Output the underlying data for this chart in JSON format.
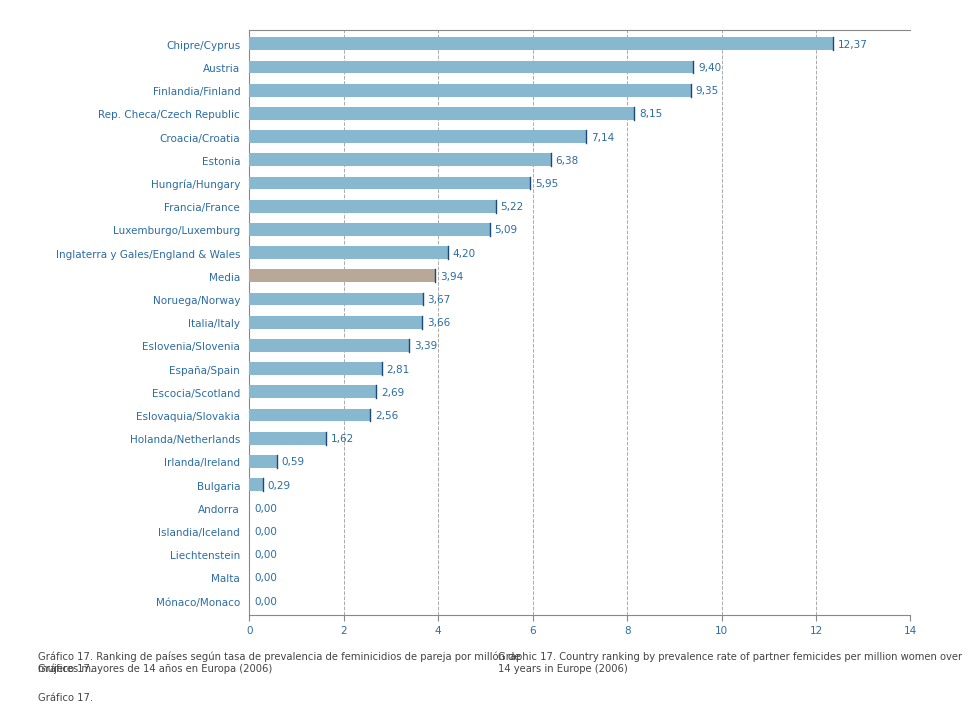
{
  "categories": [
    "Chipre/Cyprus",
    "Austria",
    "Finlandia/Finland",
    "Rep. Checa/Czech Republic",
    "Croacia/Croatia",
    "Estonia",
    "Hungría/Hungary",
    "Francia/France",
    "Luxemburgo/Luxemburg",
    "Inglaterra y Gales/England & Wales",
    "Media",
    "Noruega/Norway",
    "Italia/Italy",
    "Eslovenia/Slovenia",
    "España/Spain",
    "Escocia/Scotland",
    "Eslovaquia/Slovakia",
    "Holanda/Netherlands",
    "Irlanda/Ireland",
    "Bulgaria",
    "Andorra",
    "Islandia/Iceland",
    "Liechtenstein",
    "Malta",
    "Mónaco/Monaco"
  ],
  "values": [
    12.37,
    9.4,
    9.35,
    8.15,
    7.14,
    6.38,
    5.95,
    5.22,
    5.09,
    4.2,
    3.94,
    3.67,
    3.66,
    3.39,
    2.81,
    2.69,
    2.56,
    1.62,
    0.59,
    0.29,
    0.0,
    0.0,
    0.0,
    0.0,
    0.0
  ],
  "bar_colors": [
    "#88b8d0",
    "#88b8d0",
    "#88b8d0",
    "#88b8d0",
    "#88b8d0",
    "#88b8d0",
    "#88b8d0",
    "#88b8d0",
    "#88b8d0",
    "#88b8d0",
    "#b8a898",
    "#88b8d0",
    "#88b8d0",
    "#88b8d0",
    "#88b8d0",
    "#88b8d0",
    "#88b8d0",
    "#88b8d0",
    "#88b8d0",
    "#88b8d0",
    "#88b8d0",
    "#88b8d0",
    "#88b8d0",
    "#88b8d0",
    "#88b8d0"
  ],
  "xlim": [
    0,
    14
  ],
  "xticks": [
    0,
    2,
    4,
    6,
    8,
    10,
    12,
    14
  ],
  "grid_x": [
    2,
    4,
    6,
    8,
    10,
    12,
    14
  ],
  "text_color": "#2b6ca3",
  "label_color": "#2b6ca3",
  "border_color": "#888888",
  "bg_color": "#ffffff",
  "caption_left_normal": "Gráfico 17. ",
  "caption_left_italic": "Ranking",
  "caption_left_rest": " de países según tasa de prevalencia de feminicidios de pareja por millón de\nmujeres mayores de 14 años en Europa (2006)",
  "caption_right": "Graphic 17. Country ranking by prevalence rate of partner femicides per million women over\n14 years in Europe (2006)",
  "value_label_fontsize": 7.5,
  "tick_label_fontsize": 7.5,
  "caption_fontsize": 7.2,
  "bar_height": 0.55
}
